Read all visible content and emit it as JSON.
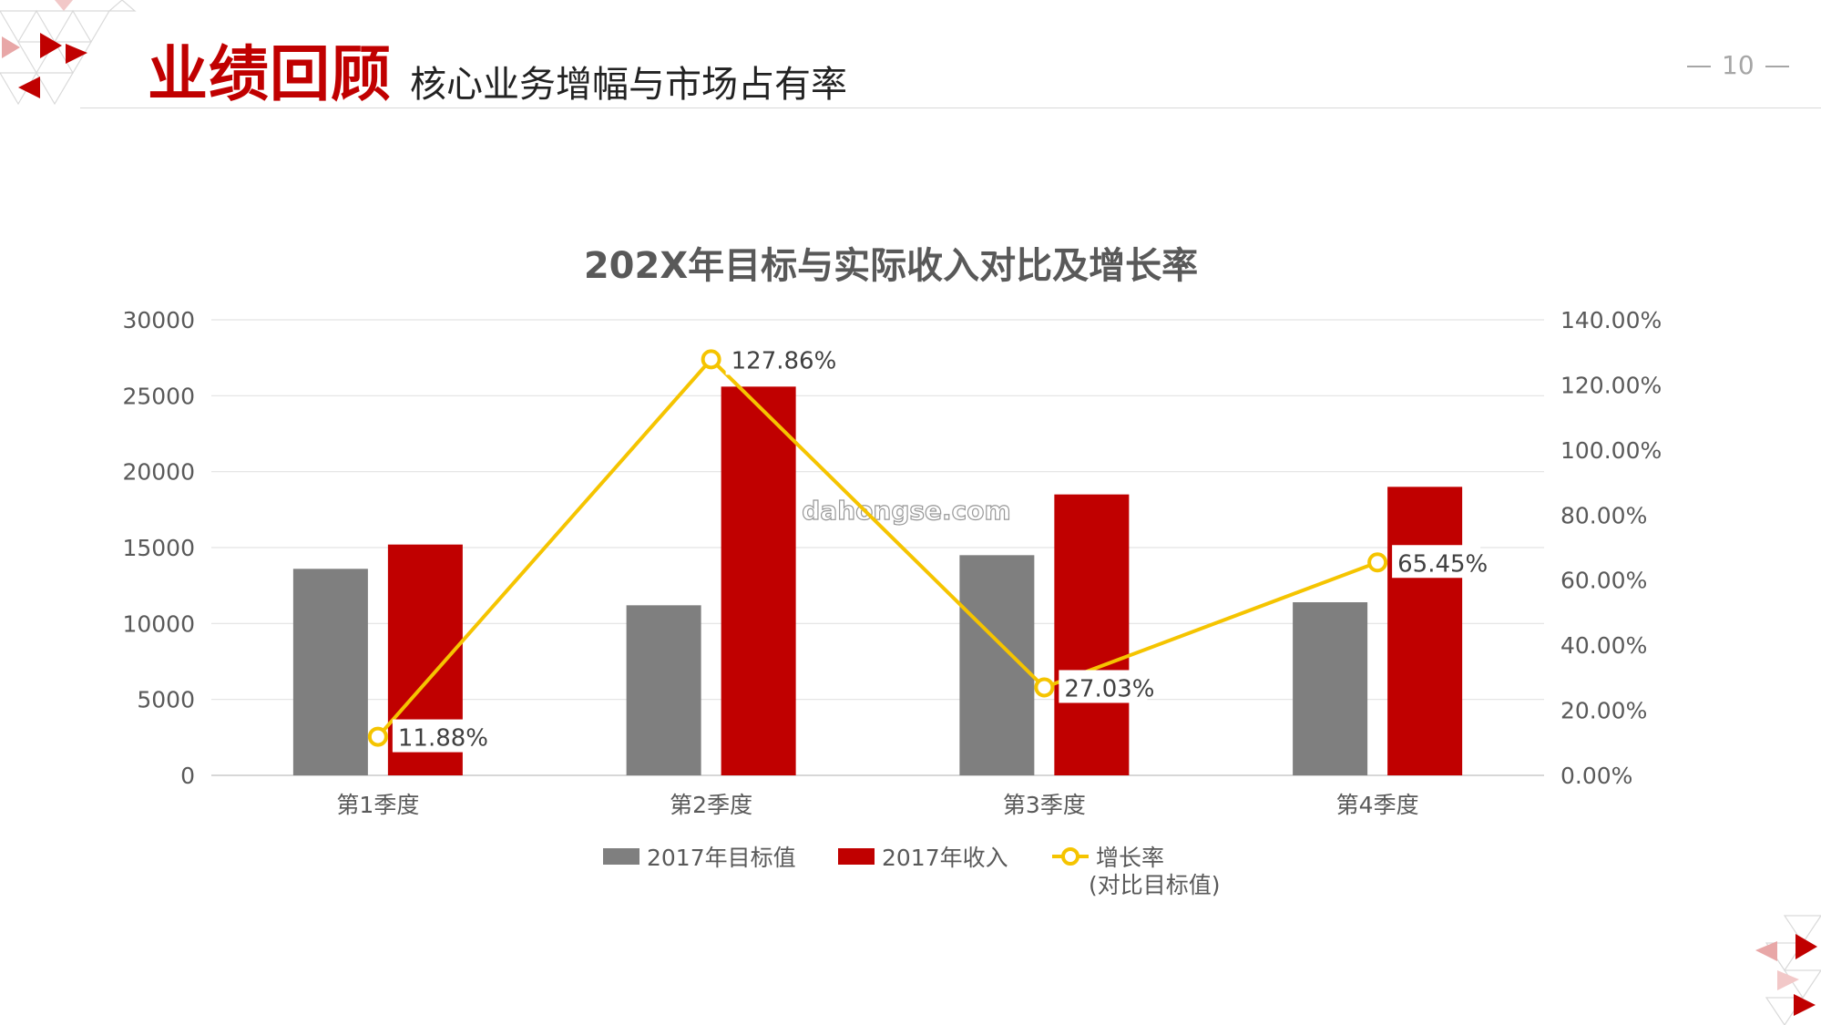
{
  "header": {
    "title": "业绩回顾",
    "subtitle": "核心业务增幅与市场占有率",
    "page_number": "10"
  },
  "watermark": "dahongse.com",
  "colors": {
    "accent_red": "#c00000",
    "gray_bar": "#7f7f7f",
    "line_yellow": "#f5c400",
    "text_dark": "#595959"
  },
  "chart_data": {
    "type": "bar",
    "title": "202X年目标与实际收入对比及增长率",
    "categories": [
      "第1季度",
      "第2季度",
      "第3季度",
      "第4季度"
    ],
    "series": [
      {
        "name": "2017年目标值",
        "type": "bar",
        "axis": "left",
        "color": "#7f7f7f",
        "values": [
          13600,
          11200,
          14500,
          11400
        ]
      },
      {
        "name": "2017年收入",
        "type": "bar",
        "axis": "left",
        "color": "#c00000",
        "values": [
          15200,
          25600,
          18500,
          19000
        ]
      },
      {
        "name": "增长率",
        "name_line2": "(对比目标值)",
        "type": "line",
        "axis": "right",
        "color": "#f5c400",
        "values": [
          11.88,
          127.86,
          27.03,
          65.45
        ],
        "labels": [
          "11.88%",
          "127.86%",
          "27.03%",
          "65.45%"
        ]
      }
    ],
    "y_left": {
      "min": 0,
      "max": 30000,
      "ticks": [
        "0",
        "5000",
        "10000",
        "15000",
        "20000",
        "25000",
        "30000"
      ]
    },
    "y_right": {
      "min": 0,
      "max": 140,
      "ticks": [
        "0.00%",
        "20.00%",
        "40.00%",
        "60.00%",
        "80.00%",
        "100.00%",
        "120.00%",
        "140.00%"
      ]
    },
    "grid": true,
    "legend_position": "bottom"
  }
}
